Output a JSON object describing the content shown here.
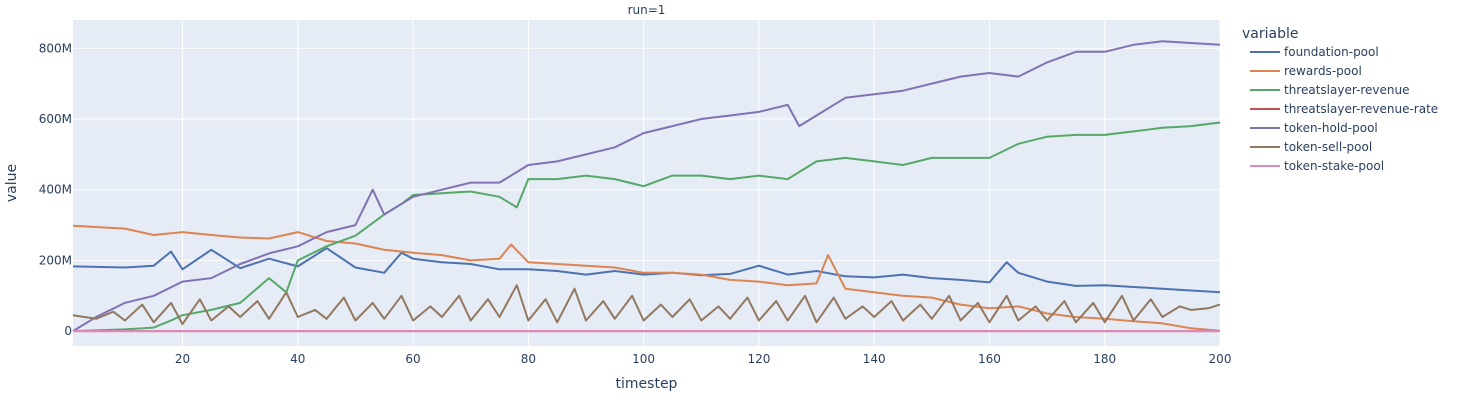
{
  "chart_data": {
    "type": "line",
    "facet_title": "run=1",
    "xlabel": "timestep",
    "ylabel": "value",
    "legend_title": "variable",
    "legend_position": "right",
    "grid": true,
    "plot_background": "#e5ecf6",
    "grid_color": "#ffffff",
    "xlim": [
      1,
      200
    ],
    "ylim": [
      -42000000,
      880000000
    ],
    "x_ticks": [
      20,
      40,
      60,
      80,
      100,
      120,
      140,
      160,
      180,
      200
    ],
    "x_tick_labels": [
      "20",
      "40",
      "60",
      "80",
      "100",
      "120",
      "140",
      "160",
      "180",
      "200"
    ],
    "y_ticks": [
      0,
      200000000,
      400000000,
      600000000,
      800000000
    ],
    "y_tick_labels": [
      "0",
      "200M",
      "400M",
      "600M",
      "800M"
    ],
    "series": [
      {
        "name": "foundation-pool",
        "color": "#4c72b0",
        "x": [
          1,
          10,
          15,
          18,
          20,
          25,
          30,
          35,
          40,
          45,
          50,
          55,
          58,
          60,
          65,
          70,
          75,
          80,
          85,
          90,
          95,
          100,
          105,
          110,
          115,
          120,
          125,
          130,
          135,
          140,
          145,
          150,
          155,
          160,
          163,
          165,
          170,
          175,
          180,
          185,
          190,
          195,
          200
        ],
        "y": [
          183000000,
          180000000,
          185000000,
          225000000,
          175000000,
          230000000,
          178000000,
          205000000,
          183000000,
          235000000,
          180000000,
          165000000,
          222000000,
          205000000,
          195000000,
          190000000,
          175000000,
          175000000,
          170000000,
          160000000,
          170000000,
          160000000,
          165000000,
          158000000,
          162000000,
          185000000,
          160000000,
          170000000,
          155000000,
          152000000,
          160000000,
          150000000,
          145000000,
          138000000,
          195000000,
          165000000,
          140000000,
          128000000,
          130000000,
          125000000,
          120000000,
          115000000,
          110000000
        ]
      },
      {
        "name": "rewards-pool",
        "color": "#dd8452",
        "x": [
          1,
          10,
          15,
          20,
          25,
          30,
          35,
          40,
          45,
          50,
          55,
          60,
          65,
          70,
          75,
          77,
          80,
          85,
          90,
          95,
          100,
          105,
          110,
          115,
          120,
          125,
          130,
          132,
          135,
          140,
          145,
          150,
          155,
          160,
          165,
          170,
          175,
          180,
          185,
          190,
          195,
          200
        ],
        "y": [
          298000000,
          290000000,
          272000000,
          280000000,
          272000000,
          265000000,
          262000000,
          280000000,
          255000000,
          248000000,
          230000000,
          222000000,
          215000000,
          200000000,
          205000000,
          245000000,
          195000000,
          190000000,
          185000000,
          180000000,
          165000000,
          165000000,
          160000000,
          145000000,
          140000000,
          130000000,
          135000000,
          215000000,
          120000000,
          110000000,
          100000000,
          95000000,
          75000000,
          65000000,
          70000000,
          50000000,
          40000000,
          35000000,
          28000000,
          22000000,
          8000000,
          1000000
        ]
      },
      {
        "name": "threatslayer-revenue",
        "color": "#55a868",
        "x": [
          1,
          10,
          15,
          18,
          20,
          25,
          30,
          35,
          38,
          40,
          45,
          50,
          55,
          58,
          60,
          65,
          70,
          75,
          78,
          80,
          85,
          90,
          95,
          100,
          105,
          110,
          115,
          120,
          125,
          130,
          135,
          140,
          145,
          150,
          155,
          160,
          165,
          170,
          175,
          180,
          185,
          190,
          195,
          200
        ],
        "y": [
          0,
          5000000,
          10000000,
          30000000,
          45000000,
          60000000,
          80000000,
          150000000,
          110000000,
          200000000,
          240000000,
          270000000,
          330000000,
          360000000,
          385000000,
          390000000,
          395000000,
          380000000,
          350000000,
          430000000,
          430000000,
          440000000,
          430000000,
          410000000,
          440000000,
          440000000,
          430000000,
          440000000,
          430000000,
          480000000,
          490000000,
          480000000,
          470000000,
          490000000,
          490000000,
          490000000,
          530000000,
          550000000,
          555000000,
          555000000,
          565000000,
          575000000,
          580000000,
          590000000
        ]
      },
      {
        "name": "threatslayer-revenue-rate",
        "color": "#c44e52",
        "x": [
          1,
          50,
          100,
          150,
          200
        ],
        "y": [
          0,
          0,
          0,
          0,
          0
        ]
      },
      {
        "name": "token-hold-pool",
        "color": "#8172b3",
        "x": [
          1,
          5,
          10,
          15,
          20,
          25,
          30,
          35,
          40,
          45,
          50,
          53,
          55,
          60,
          65,
          70,
          75,
          80,
          85,
          90,
          95,
          100,
          105,
          110,
          115,
          120,
          125,
          127,
          130,
          135,
          140,
          145,
          150,
          155,
          160,
          165,
          170,
          175,
          180,
          185,
          190,
          195,
          200
        ],
        "y": [
          0,
          40000000,
          80000000,
          100000000,
          140000000,
          150000000,
          190000000,
          220000000,
          240000000,
          280000000,
          300000000,
          400000000,
          330000000,
          380000000,
          400000000,
          420000000,
          420000000,
          470000000,
          480000000,
          500000000,
          520000000,
          560000000,
          580000000,
          600000000,
          610000000,
          620000000,
          640000000,
          580000000,
          610000000,
          660000000,
          670000000,
          680000000,
          700000000,
          720000000,
          730000000,
          720000000,
          760000000,
          790000000,
          790000000,
          810000000,
          820000000,
          815000000,
          810000000
        ]
      },
      {
        "name": "token-sell-pool",
        "color": "#937860",
        "x": [
          1,
          5,
          8,
          10,
          13,
          15,
          18,
          20,
          23,
          25,
          28,
          30,
          33,
          35,
          38,
          40,
          43,
          45,
          48,
          50,
          53,
          55,
          58,
          60,
          63,
          65,
          68,
          70,
          73,
          75,
          78,
          80,
          83,
          85,
          88,
          90,
          93,
          95,
          98,
          100,
          103,
          105,
          108,
          110,
          113,
          115,
          118,
          120,
          123,
          125,
          128,
          130,
          133,
          135,
          138,
          140,
          143,
          145,
          148,
          150,
          153,
          155,
          158,
          160,
          163,
          165,
          168,
          170,
          173,
          175,
          178,
          180,
          183,
          185,
          188,
          190,
          193,
          195,
          198,
          200
        ],
        "y": [
          45000000,
          35000000,
          55000000,
          30000000,
          75000000,
          25000000,
          80000000,
          20000000,
          90000000,
          30000000,
          70000000,
          40000000,
          85000000,
          35000000,
          110000000,
          40000000,
          60000000,
          35000000,
          95000000,
          30000000,
          80000000,
          35000000,
          100000000,
          30000000,
          70000000,
          40000000,
          100000000,
          30000000,
          90000000,
          40000000,
          130000000,
          30000000,
          90000000,
          25000000,
          120000000,
          30000000,
          85000000,
          35000000,
          100000000,
          30000000,
          75000000,
          40000000,
          90000000,
          30000000,
          70000000,
          35000000,
          95000000,
          30000000,
          85000000,
          30000000,
          100000000,
          25000000,
          95000000,
          35000000,
          70000000,
          40000000,
          85000000,
          30000000,
          75000000,
          35000000,
          100000000,
          30000000,
          80000000,
          25000000,
          100000000,
          30000000,
          70000000,
          30000000,
          85000000,
          25000000,
          80000000,
          25000000,
          100000000,
          30000000,
          90000000,
          40000000,
          70000000,
          60000000,
          65000000,
          75000000
        ]
      },
      {
        "name": "token-stake-pool",
        "color": "#da8bc3",
        "x": [
          1,
          50,
          100,
          150,
          200
        ],
        "y": [
          0,
          0,
          0,
          0,
          0
        ]
      }
    ]
  }
}
